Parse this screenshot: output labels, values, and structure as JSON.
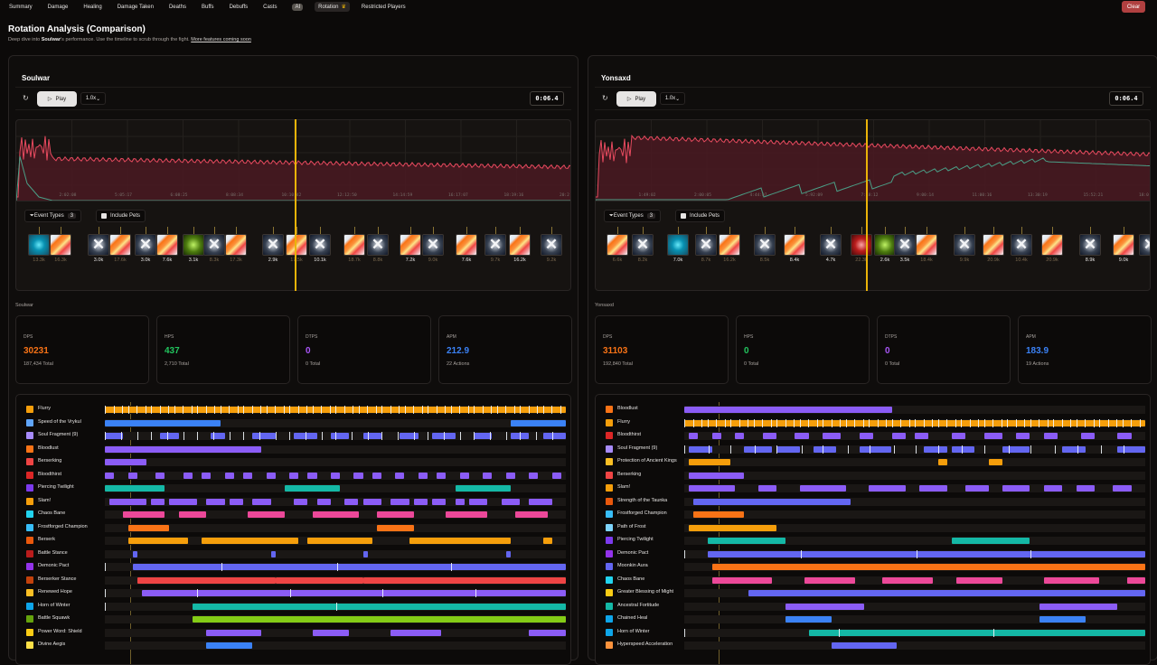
{
  "nav": {
    "tabs": [
      "Summary",
      "Damage",
      "Healing",
      "Damage Taken",
      "Deaths",
      "Buffs",
      "Debuffs",
      "Casts",
      "AI",
      "Rotation",
      "Restricted Players"
    ],
    "active": "Rotation",
    "crown_icon": "crown-icon",
    "clear_label": "Clear"
  },
  "header": {
    "title": "Rotation Analysis (Comparison)",
    "desc_before": "Deep dive into ",
    "player": "Soulwar",
    "desc_after": "'s performance. Use the timeline to scrub through the fight. ",
    "link": "More features coming soon"
  },
  "colors": {
    "orange": "#f59e0b",
    "blue": "#3b82f6",
    "purple": "#8b5cf6",
    "teal": "#14b8a6",
    "pink": "#ec4899",
    "red": "#ef4444",
    "indigo": "#6366f1",
    "lime": "#84cc16",
    "deep_orange": "#f97316"
  },
  "panels": [
    {
      "name": "Soulwar",
      "play_label": "Play",
      "speed": "1.0x",
      "timer": "0:06.4",
      "event_types_label": "Event Types",
      "event_types_count": "3",
      "include_pets_label": "Include Pets",
      "graph_ticks": [
        "2:02:08",
        "5:05:17",
        "6:08:25",
        "8:08:34",
        "10:10:42",
        "12:12:50",
        "14:14:59",
        "16:17:07",
        "18:19:16",
        "20:2"
      ],
      "events": [
        {
          "icon": "bl",
          "label": "13.3k",
          "dim": true
        },
        {
          "icon": "fl",
          "label": "16.3k",
          "dim": true
        },
        {
          "icon": "sl",
          "label": "3.0k"
        },
        {
          "icon": "fl",
          "label": "17.6k",
          "dim": true
        },
        {
          "icon": "sl",
          "label": "3.0k"
        },
        {
          "icon": "fl",
          "label": "7.6k"
        },
        {
          "icon": "gr",
          "label": "3.1k"
        },
        {
          "icon": "sl",
          "label": "8.3k",
          "dim": true
        },
        {
          "icon": "fl",
          "label": "17.3k",
          "dim": true
        },
        {
          "icon": "sl",
          "label": "2.9k"
        },
        {
          "icon": "fl",
          "label": "17.5k",
          "dim": true
        },
        {
          "icon": "sl",
          "label": "10.1k"
        },
        {
          "icon": "fl",
          "label": "18.7k",
          "dim": true
        },
        {
          "icon": "sl",
          "label": "8.8k",
          "dim": true
        },
        {
          "icon": "fl",
          "label": "7.2k"
        },
        {
          "icon": "sl",
          "label": "9.0k",
          "dim": true
        },
        {
          "icon": "fl",
          "label": "7.6k"
        },
        {
          "icon": "sl",
          "label": "9.7k",
          "dim": true
        },
        {
          "icon": "fl",
          "label": "16.2k"
        },
        {
          "icon": "sl",
          "label": "9.2k",
          "dim": true
        }
      ],
      "subtitle": "Soulwar",
      "stats": [
        {
          "label": "DPS",
          "value": "30231",
          "sub": "187,434 Total",
          "color": "#f97316"
        },
        {
          "label": "HPS",
          "value": "437",
          "sub": "2,710 Total",
          "color": "#22c55e"
        },
        {
          "label": "DTPS",
          "value": "0",
          "sub": "0 Total",
          "color": "#a855f7"
        },
        {
          "label": "APM",
          "value": "212.9",
          "sub": "22 Actions",
          "color": "#3b82f6"
        }
      ],
      "rows": [
        {
          "name": "Flurry",
          "icon": "#f59e0b"
        },
        {
          "name": "Speed of the Vrykul",
          "icon": "#60a5fa"
        },
        {
          "name": "Soul Fragment (9)",
          "icon": "#a78bfa"
        },
        {
          "name": "Bloodlust",
          "icon": "#f97316"
        },
        {
          "name": "Berserking",
          "icon": "#ef4444"
        },
        {
          "name": "Bloodthirst",
          "icon": "#dc2626"
        },
        {
          "name": "Piercing Twilight",
          "icon": "#7c3aed"
        },
        {
          "name": "Slam!",
          "icon": "#f59e0b"
        },
        {
          "name": "Chaos Bane",
          "icon": "#22d3ee"
        },
        {
          "name": "Frostforged Champion",
          "icon": "#38bdf8"
        },
        {
          "name": "Berserk",
          "icon": "#ea580c"
        },
        {
          "name": "Battle Stance",
          "icon": "#b91c1c"
        },
        {
          "name": "Demonic Pact",
          "icon": "#9333ea"
        },
        {
          "name": "Berserker Stance",
          "icon": "#c2410c"
        },
        {
          "name": "Renewed Hope",
          "icon": "#fbbf24"
        },
        {
          "name": "Horn of Winter",
          "icon": "#0ea5e9"
        },
        {
          "name": "Battle Squawk",
          "icon": "#65a30d"
        },
        {
          "name": "Power Word: Shield",
          "icon": "#facc15"
        },
        {
          "name": "Divine Aegis",
          "icon": "#fde047"
        }
      ]
    },
    {
      "name": "Yonsaxd",
      "play_label": "Play",
      "speed": "1.0x",
      "timer": "0:06.4",
      "event_types_label": "Event Types",
      "event_types_count": "3",
      "include_pets_label": "Include Pets",
      "graph_ticks": [
        "1:49:02",
        "2:00:05",
        "4:44:07",
        "5:92:09",
        "7:48:12",
        "9:00:14",
        "11:00:16",
        "13:30:19",
        "15:52:21",
        "18:0"
      ],
      "events": [
        {
          "icon": "fl",
          "label": "6.6k",
          "dim": true
        },
        {
          "icon": "sl",
          "label": "8.2k",
          "dim": true
        },
        {
          "icon": "bl",
          "label": "7.0k"
        },
        {
          "icon": "sl",
          "label": "8.7k",
          "dim": true
        },
        {
          "icon": "fl",
          "label": "16.2k",
          "dim": true
        },
        {
          "icon": "sl",
          "label": "8.5k",
          "dim": true
        },
        {
          "icon": "fl",
          "label": "8.4k"
        },
        {
          "icon": "sl",
          "label": "4.7k"
        },
        {
          "icon": "rd",
          "label": "22.3k",
          "dim": true
        },
        {
          "icon": "gr",
          "label": "2.6k"
        },
        {
          "icon": "sl",
          "label": "3.5k"
        },
        {
          "icon": "fl",
          "label": "18.4k",
          "dim": true
        },
        {
          "icon": "sl",
          "label": "9.9k",
          "dim": true
        },
        {
          "icon": "fl",
          "label": "20.9k",
          "dim": true
        },
        {
          "icon": "sl",
          "label": "10.4k",
          "dim": true
        },
        {
          "icon": "fl",
          "label": "20.9k",
          "dim": true
        },
        {
          "icon": "sl",
          "label": "8.9k"
        },
        {
          "icon": "fl",
          "label": "9.0k"
        },
        {
          "icon": "sl",
          "label": ""
        }
      ],
      "subtitle": "Yonsaxd",
      "stats": [
        {
          "label": "DPS",
          "value": "31103",
          "sub": "192,840 Total",
          "color": "#f97316"
        },
        {
          "label": "HPS",
          "value": "0",
          "sub": "0 Total",
          "color": "#22c55e"
        },
        {
          "label": "DTPS",
          "value": "0",
          "sub": "0 Total",
          "color": "#a855f7"
        },
        {
          "label": "APM",
          "value": "183.9",
          "sub": "19 Actions",
          "color": "#3b82f6"
        }
      ],
      "rows": [
        {
          "name": "Bloodlust",
          "icon": "#f97316"
        },
        {
          "name": "Flurry",
          "icon": "#f59e0b"
        },
        {
          "name": "Bloodthirst",
          "icon": "#dc2626"
        },
        {
          "name": "Soul Fragment (9)",
          "icon": "#a78bfa"
        },
        {
          "name": "Protection of Ancient Kings",
          "icon": "#fbbf24"
        },
        {
          "name": "Berserking",
          "icon": "#ef4444"
        },
        {
          "name": "Slam!",
          "icon": "#f59e0b"
        },
        {
          "name": "Strength of the Taunka",
          "icon": "#ea580c"
        },
        {
          "name": "Frostforged Champion",
          "icon": "#38bdf8"
        },
        {
          "name": "Path of Frost",
          "icon": "#7dd3fc"
        },
        {
          "name": "Piercing Twilight",
          "icon": "#7c3aed"
        },
        {
          "name": "Demonic Pact",
          "icon": "#9333ea"
        },
        {
          "name": "Moonkin Aura",
          "icon": "#6366f1"
        },
        {
          "name": "Chaos Bane",
          "icon": "#22d3ee"
        },
        {
          "name": "Greater Blessing of Might",
          "icon": "#facc15"
        },
        {
          "name": "Ancestral Fortitude",
          "icon": "#14b8a6"
        },
        {
          "name": "Chained Heal",
          "icon": "#0ea5e9"
        },
        {
          "name": "Horn of Winter",
          "icon": "#0ea5e9"
        },
        {
          "name": "Hyperspeed Acceleration",
          "icon": "#fb923c"
        }
      ]
    }
  ]
}
